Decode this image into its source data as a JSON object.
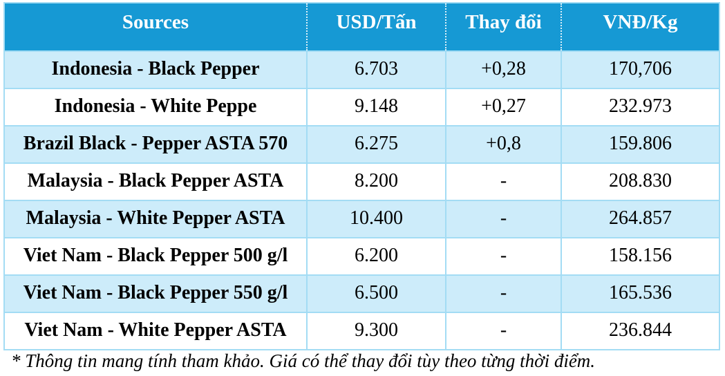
{
  "chart_data": {
    "type": "table",
    "columns": [
      "Sources",
      "USD/Tấn",
      "Thay đổi",
      "VNĐ/Kg"
    ],
    "rows": [
      [
        "Indonesia - Black Pepper",
        "6.703",
        "+0,28",
        "170,706"
      ],
      [
        "Indonesia - White Peppe",
        "9.148",
        "+0,27",
        "232.973"
      ],
      [
        "Brazil Black - Pepper ASTA 570",
        "6.275",
        "+0,8",
        "159.806"
      ],
      [
        "Malaysia - Black Pepper ASTA",
        "8.200",
        "-",
        "208.830"
      ],
      [
        "Malaysia - White Pepper ASTA",
        "10.400",
        "-",
        "264.857"
      ],
      [
        "Viet Nam - Black Pepper 500 g/l",
        "6.200",
        "-",
        "158.156"
      ],
      [
        "Viet Nam - Black Pepper 550 g/l",
        "6.500",
        "-",
        "165.536"
      ],
      [
        "Viet Nam - White Pepper ASTA",
        "9.300",
        "-",
        "236.844"
      ]
    ],
    "footnote": "* Thông tin mang tính tham khảo. Giá có thể thay đổi tùy theo từng thời điểm.",
    "layout": {
      "grid": true,
      "striped": true,
      "first_row_is_header": true
    }
  },
  "footnote": "* Thông tin mang tính tham khảo. Giá có thể thay đổi tùy theo từng thời điểm.",
  "colors": {
    "header_bg": "#1699D4",
    "header_text": "#FFFFFF",
    "row_alt_bg": "#CDECFA",
    "row_bg": "#FFFFFF",
    "border": "#A3DCF4",
    "body_text": "#000000"
  }
}
